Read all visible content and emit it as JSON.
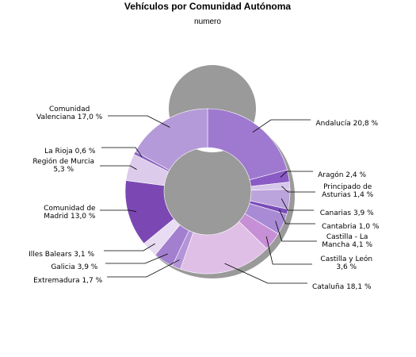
{
  "chart_data": {
    "type": "donut",
    "title": "Vehículos por Comunidad Autónoma",
    "subtitle": "numero",
    "unit": "%",
    "slices": [
      {
        "label_lines": [
          "Andalucía 20,8 %"
        ],
        "value": 20.8,
        "color": "#9f79cf"
      },
      {
        "label_lines": [
          "Aragón 2,4 %"
        ],
        "value": 2.4,
        "color": "#8a5bc4"
      },
      {
        "label_lines": [
          "Principado de",
          "Asturias 1,4 %"
        ],
        "value": 1.4,
        "color": "#d6c6ea"
      },
      {
        "label_lines": [
          "Canarias 3,9 %"
        ],
        "value": 3.9,
        "color": "#bba3dc"
      },
      {
        "label_lines": [
          "Cantabria 1,0 %"
        ],
        "value": 1.0,
        "color": "#7a4cb8"
      },
      {
        "label_lines": [
          "Castilla - La",
          "Mancha 4,1 %"
        ],
        "value": 4.1,
        "color": "#a98bd5"
      },
      {
        "label_lines": [
          "Castilla y León",
          "3,6 %"
        ],
        "value": 3.6,
        "color": "#c78fd6"
      },
      {
        "label_lines": [
          "Cataluña 18,1 %"
        ],
        "value": 18.1,
        "color": "#e0bfe6"
      },
      {
        "label_lines": [
          "Extremadura 1,7 %"
        ],
        "value": 1.7,
        "color": "#b494d8"
      },
      {
        "label_lines": [
          "Galicia 3,9 %"
        ],
        "value": 3.9,
        "color": "#a27fcf"
      },
      {
        "label_lines": [
          "Illes Balears 3,1 %"
        ],
        "value": 3.1,
        "color": "#e8dcf2"
      },
      {
        "label_lines": [
          "Comunidad de",
          "Madrid 13,0 %"
        ],
        "value": 13.0,
        "color": "#7b48b3"
      },
      {
        "label_lines": [
          "Región de Murcia",
          "5,3 %"
        ],
        "value": 5.3,
        "color": "#dccbeb"
      },
      {
        "label_lines": [
          "La Rioja 0,6 %"
        ],
        "value": 0.6,
        "color": "#8c64c2"
      },
      {
        "label_lines": [
          "Comunidad",
          "Valenciana 17,0 %"
        ],
        "value": 17.0,
        "color": "#b49ad8"
      }
    ]
  }
}
